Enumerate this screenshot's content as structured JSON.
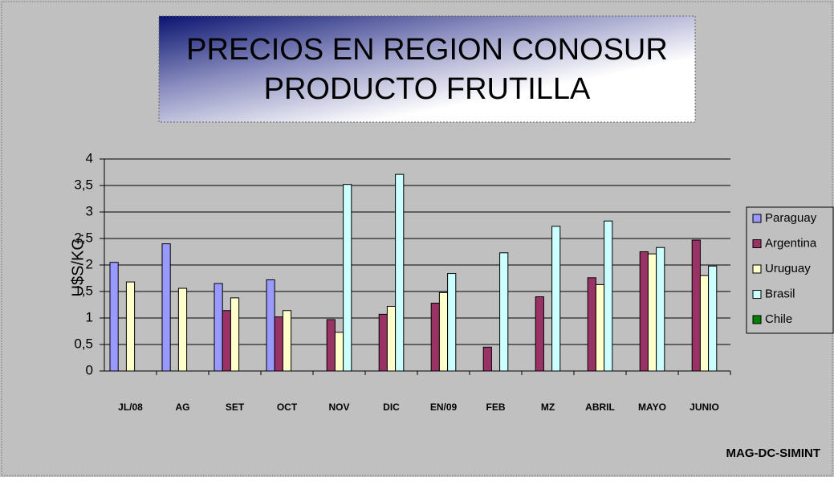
{
  "chart_data": {
    "type": "bar",
    "title": [
      "PRECIOS EN REGION CONOSUR",
      "PRODUCTO FRUTILLA"
    ],
    "y_label": "U$S/KG.",
    "source": "MAG-DC-SIMINT",
    "categories": [
      "JL/08",
      "AG",
      "SET",
      "OCT",
      "NOV",
      "DIC",
      "EN/09",
      "FEB",
      "MZ",
      "ABRIL",
      "MAYO",
      "JUNIO"
    ],
    "series": [
      {
        "name": "Paraguay",
        "color": "#9999ff",
        "values": [
          2.05,
          2.4,
          1.65,
          1.72,
          null,
          null,
          null,
          null,
          null,
          null,
          null,
          null
        ]
      },
      {
        "name": "Argentina",
        "color": "#993366",
        "values": [
          null,
          null,
          1.14,
          1.02,
          0.97,
          1.07,
          1.28,
          0.45,
          1.4,
          1.76,
          2.25,
          2.47
        ]
      },
      {
        "name": "Uruguay",
        "color": "#ffffcc",
        "values": [
          1.68,
          1.56,
          1.38,
          1.14,
          0.73,
          1.22,
          1.48,
          null,
          null,
          1.63,
          2.21,
          1.8
        ]
      },
      {
        "name": "Brasil",
        "color": "#ccffff",
        "values": [
          null,
          null,
          null,
          null,
          3.52,
          3.71,
          1.84,
          2.23,
          2.73,
          2.83,
          2.33,
          1.98
        ]
      },
      {
        "name": "Chile",
        "color": "#008000",
        "values": [
          null,
          null,
          null,
          null,
          null,
          null,
          null,
          null,
          null,
          null,
          null,
          null
        ]
      }
    ],
    "ylim": [
      0,
      4
    ],
    "yticks": [
      0,
      {
        "value": 0.5,
        "label": "0,5"
      },
      1,
      {
        "value": 1.5,
        "label": "1,5"
      },
      2,
      {
        "value": 2.5,
        "label": "2,5"
      },
      3,
      {
        "value": 3.5,
        "label": "3,5"
      },
      4
    ],
    "grid": true
  }
}
